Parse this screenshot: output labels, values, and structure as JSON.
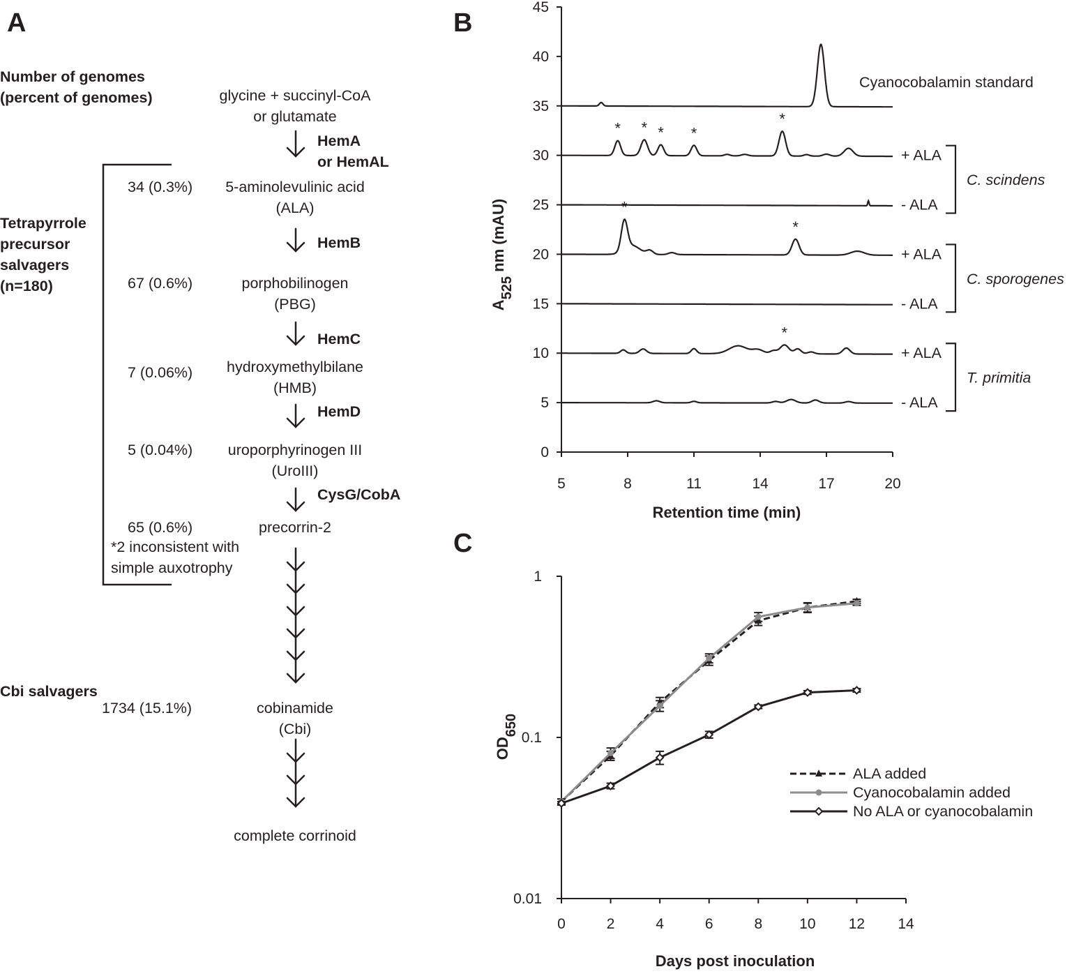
{
  "panels": {
    "a": "A",
    "b": "B",
    "c": "C"
  },
  "panel_a": {
    "header": [
      "Number of genomes",
      "(percent of genomes)"
    ],
    "pathway_start": [
      "glycine + succinyl-CoA",
      "or glutamate"
    ],
    "group_tetrapyrrole": [
      "Tetrapyrrole",
      "precursor",
      "salvagers",
      "(n=180)"
    ],
    "group_cbi": "Cbi salvagers",
    "inconsistent_note": [
      "*2 inconsistent with",
      "simple auxotrophy"
    ],
    "final_product": "complete corrinoid",
    "steps": [
      {
        "enzyme": [
          "HemA",
          "or HemAL"
        ],
        "count": "34 (0.3%)",
        "compound": [
          "5-aminolevulinic acid",
          "(ALA)"
        ]
      },
      {
        "enzyme": [
          "HemB"
        ],
        "count": "67 (0.6%)",
        "compound": [
          "porphobilinogen",
          "(PBG)"
        ]
      },
      {
        "enzyme": [
          "HemC"
        ],
        "count": "7 (0.06%)",
        "compound": [
          "hydroxymethylbilane",
          "(HMB)"
        ]
      },
      {
        "enzyme": [
          "HemD"
        ],
        "count": "5 (0.04%)",
        "compound": [
          "uroporphyrinogen III",
          "(UroIII)"
        ]
      },
      {
        "enzyme": [
          "CysG/CobA"
        ],
        "count": "65 (0.6%)",
        "compound": [
          "precorrin-2"
        ]
      },
      {
        "enzyme": [],
        "count": "1734 (15.1%)",
        "compound": [
          "cobinamide",
          "(Cbi)"
        ]
      }
    ]
  },
  "chart_data": [
    {
      "type": "line",
      "panel": "B",
      "title": "",
      "xlabel": "Retention time (min)",
      "ylabel": "A525 nm (mAU)",
      "ylabel_main": "A",
      "ylabel_sub": "525",
      "ylabel_rest": " nm (mAU)",
      "xlim": [
        5,
        20
      ],
      "ylim": [
        0,
        45
      ],
      "xticks": [
        5,
        8,
        11,
        14,
        17,
        20
      ],
      "yticks": [
        0,
        5,
        10,
        15,
        20,
        25,
        30,
        35,
        40,
        45
      ],
      "series": [
        {
          "name": "Cyanocobalamin standard",
          "group": "",
          "baseline": 35,
          "slope": -0.1,
          "peaks": [
            {
              "x": 6.8,
              "h": 0.35,
              "w": 0.08
            },
            {
              "x": 16.75,
              "h": 6.3,
              "w": 0.16
            }
          ],
          "starred": []
        },
        {
          "name": "+ ALA",
          "group": "C. scindens",
          "baseline": 30,
          "slope": -0.1,
          "peaks": [
            {
              "x": 7.55,
              "h": 1.5,
              "w": 0.13
            },
            {
              "x": 8.75,
              "h": 1.6,
              "w": 0.15
            },
            {
              "x": 9.5,
              "h": 1.1,
              "w": 0.13
            },
            {
              "x": 11.0,
              "h": 1.05,
              "w": 0.13
            },
            {
              "x": 12.5,
              "h": 0.15,
              "w": 0.12
            },
            {
              "x": 13.3,
              "h": 0.15,
              "w": 0.15
            },
            {
              "x": 15.0,
              "h": 2.5,
              "w": 0.15
            },
            {
              "x": 16.1,
              "h": 0.15,
              "w": 0.12
            },
            {
              "x": 17.0,
              "h": 0.2,
              "w": 0.15
            },
            {
              "x": 18.0,
              "h": 0.8,
              "w": 0.2
            }
          ],
          "starred": [
            7.55,
            8.75,
            9.5,
            11.0,
            15.0
          ]
        },
        {
          "name": "- ALA",
          "group": "C. scindens",
          "baseline": 25,
          "slope": -0.1,
          "peaks": [
            {
              "x": 18.9,
              "h": 0.5,
              "w": 0.03
            }
          ],
          "starred": []
        },
        {
          "name": "+ ALA",
          "group": "C. sporogenes",
          "baseline": 20,
          "slope": -0.1,
          "peaks": [
            {
              "x": 7.85,
              "h": 3.0,
              "w": 0.14
            },
            {
              "x": 8.2,
              "h": 0.9,
              "w": 0.35
            },
            {
              "x": 9.0,
              "h": 0.4,
              "w": 0.15
            },
            {
              "x": 10.0,
              "h": 0.2,
              "w": 0.15
            },
            {
              "x": 15.6,
              "h": 1.6,
              "w": 0.16
            },
            {
              "x": 18.4,
              "h": 0.4,
              "w": 0.3
            }
          ],
          "starred": [
            7.85,
            15.6
          ]
        },
        {
          "name": "- ALA",
          "group": "C. sporogenes",
          "baseline": 15,
          "slope": -0.1,
          "peaks": [],
          "starred": []
        },
        {
          "name": "+ ALA",
          "group": "T. primitia",
          "baseline": 10,
          "slope": -0.1,
          "peaks": [
            {
              "x": 7.8,
              "h": 0.35,
              "w": 0.12
            },
            {
              "x": 8.7,
              "h": 0.45,
              "w": 0.15
            },
            {
              "x": 11.0,
              "h": 0.5,
              "w": 0.12
            },
            {
              "x": 13.0,
              "h": 0.8,
              "w": 0.4
            },
            {
              "x": 13.9,
              "h": 0.4,
              "w": 0.25
            },
            {
              "x": 14.6,
              "h": 0.3,
              "w": 0.15
            },
            {
              "x": 15.1,
              "h": 0.9,
              "w": 0.2
            },
            {
              "x": 15.7,
              "h": 0.5,
              "w": 0.15
            },
            {
              "x": 16.3,
              "h": 0.2,
              "w": 0.15
            },
            {
              "x": 17.9,
              "h": 0.6,
              "w": 0.16
            }
          ],
          "starred": [
            15.1
          ]
        },
        {
          "name": "- ALA",
          "group": "T. primitia",
          "baseline": 5,
          "slope": -0.05,
          "peaks": [
            {
              "x": 9.3,
              "h": 0.2,
              "w": 0.15
            },
            {
              "x": 11.0,
              "h": 0.15,
              "w": 0.12
            },
            {
              "x": 14.7,
              "h": 0.15,
              "w": 0.15
            },
            {
              "x": 15.4,
              "h": 0.35,
              "w": 0.2
            },
            {
              "x": 16.5,
              "h": 0.3,
              "w": 0.16
            },
            {
              "x": 18.0,
              "h": 0.15,
              "w": 0.15
            }
          ],
          "starred": []
        }
      ],
      "groups": [
        "C. scindens",
        "C. sporogenes",
        "T. primitia"
      ]
    },
    {
      "type": "line",
      "panel": "C",
      "title": "",
      "xlabel": "Days post inoculation",
      "ylabel": "OD650",
      "ylabel_main": "OD",
      "ylabel_sub": "650",
      "yscale": "log",
      "xlim": [
        0,
        14
      ],
      "ylim": [
        0.01,
        1
      ],
      "xticks": [
        0,
        2,
        4,
        6,
        8,
        10,
        12,
        14
      ],
      "yticks": [
        0.01,
        0.1,
        1
      ],
      "ytick_labels": [
        "0.01",
        "0.1",
        "1"
      ],
      "legend_position": "bottom-right",
      "series": [
        {
          "name": "ALA added",
          "color": "#231f20",
          "dash": "dashed",
          "marker": "triangle",
          "x": [
            0,
            2,
            4,
            6,
            8,
            10,
            12
          ],
          "y": [
            0.04,
            0.077,
            0.165,
            0.3,
            0.53,
            0.64,
            0.7
          ],
          "err": [
            0.0015,
            0.005,
            0.012,
            0.02,
            0.035,
            0.04,
            0.02
          ]
        },
        {
          "name": "Cyanocobalamin added",
          "color": "#8c8c8c",
          "dash": "solid",
          "marker": "circle",
          "x": [
            0,
            2,
            4,
            6,
            8,
            10,
            12
          ],
          "y": [
            0.04,
            0.08,
            0.157,
            0.31,
            0.56,
            0.64,
            0.68
          ],
          "err": [
            0.0015,
            0.006,
            0.012,
            0.02,
            0.035,
            0.045,
            0.02
          ]
        },
        {
          "name": "No ALA or cyanocobalamin",
          "color": "#231f20",
          "dash": "solid",
          "marker": "diamond",
          "x": [
            0,
            2,
            4,
            6,
            8,
            10,
            12
          ],
          "y": [
            0.039,
            0.05,
            0.075,
            0.104,
            0.155,
            0.19,
            0.196
          ],
          "err": [
            0.001,
            0.002,
            0.007,
            0.005,
            0.004,
            0.005,
            0.005
          ]
        }
      ]
    }
  ]
}
